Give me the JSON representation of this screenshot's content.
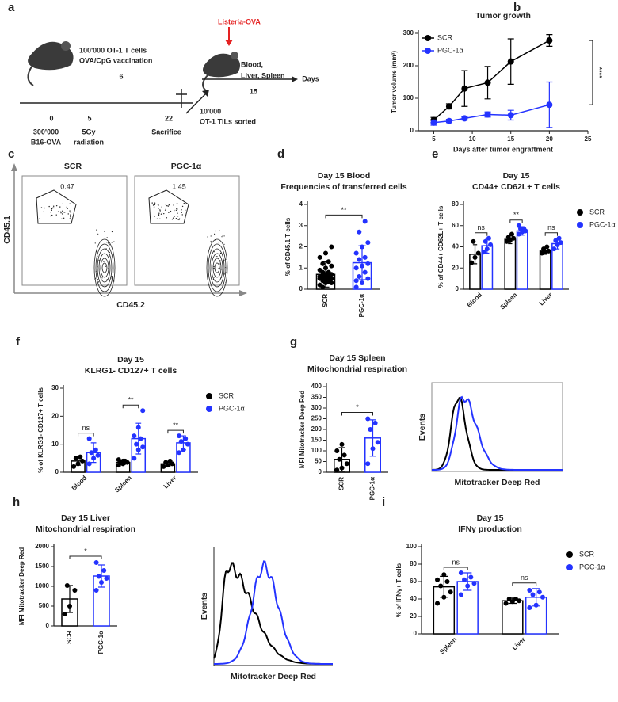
{
  "schematic": {
    "panel": "a",
    "injection": "Listeria-OVA",
    "harvest": [
      "Blood,",
      "Liver, Spleen"
    ],
    "treatment": [
      "100'000 OT-1 T cells",
      "OVA/CpG vaccination"
    ],
    "interval": 6,
    "timeline": [
      {
        "day": 0,
        "event": [
          "300'000",
          "B16-OVA"
        ]
      },
      {
        "day": 5,
        "event": [
          "5Gy",
          "radiation"
        ]
      },
      {
        "day": 22,
        "event": [
          "Sacrifice"
        ]
      }
    ],
    "transfer": [
      "10'000",
      "OT-1 TILs sorted"
    ],
    "followup": 15,
    "unit": "Days"
  },
  "flow": {
    "panel": "c",
    "plots": [
      {
        "name": "SCR",
        "gate_value": 0.47
      },
      {
        "name": "PGC-1α",
        "gate_value": {
          "value": 1.45,
          "label": "1,45"
        }
      }
    ],
    "y_label": "CD45.1",
    "x_label": "CD45.2"
  },
  "chart_data": [
    {
      "type": "line",
      "panel": "b",
      "title": "Tumor growth",
      "x_label": "Days after tumor engraftment",
      "y_label": "Tumor volume (mm³)",
      "x": [
        5,
        7,
        9,
        12,
        15,
        20
      ],
      "series": [
        {
          "name": "SCR",
          "color": "#000000",
          "values": [
            33,
            75,
            130,
            148,
            213,
            278
          ],
          "errors": [
            8,
            8,
            55,
            50,
            70,
            18
          ]
        },
        {
          "name": "PGC-1α",
          "color": "#2433ff",
          "values": [
            25,
            30,
            38,
            50,
            48,
            80
          ],
          "errors": [
            8,
            5,
            5,
            8,
            15,
            70
          ]
        }
      ],
      "xlim": [
        3,
        25
      ],
      "xticks": [
        5,
        10,
        15,
        20,
        25
      ],
      "ylim": [
        0,
        300
      ],
      "yticks": [
        0,
        100,
        200,
        300
      ],
      "annotation": "****",
      "legend": "upper left"
    },
    {
      "type": "bar",
      "panel": "d",
      "title": "Day 15 Blood",
      "subtitle": "Frequencies of transferred cells",
      "y_label": "% of CD45.1 T cells",
      "categories": [
        "SCR",
        "PGC-1α"
      ],
      "colors": [
        "#000000",
        "#2433ff"
      ],
      "values": [
        0.7,
        1.25
      ],
      "errors": [
        0.6,
        0.8
      ],
      "points": [
        [
          0.2,
          0.3,
          0.3,
          0.4,
          0.4,
          0.5,
          0.5,
          0.5,
          0.6,
          0.6,
          0.6,
          0.7,
          0.7,
          0.8,
          0.8,
          0.9,
          1.0,
          1.1,
          1.2,
          1.3,
          1.5,
          1.7,
          2.0,
          0.1,
          0.35
        ],
        [
          0.1,
          0.3,
          0.5,
          0.6,
          0.8,
          1.0,
          1.1,
          1.2,
          1.4,
          1.5,
          1.7,
          2.0,
          2.2,
          2.7,
          3.2,
          0.4
        ]
      ],
      "significance": "**",
      "ylim": [
        0,
        4
      ],
      "yticks": [
        0,
        1,
        2,
        3,
        4
      ]
    },
    {
      "type": "bar",
      "panel": "e",
      "title": "Day 15",
      "subtitle": "CD44+ CD62L+ T cells",
      "y_label": "% of CD44+ CD62L+ T cells",
      "categories": [
        "Blood",
        "Spleen",
        "Liver"
      ],
      "series": [
        {
          "name": "SCR",
          "color": "#000000",
          "values": [
            33,
            47,
            36
          ],
          "errors": [
            9,
            4,
            3
          ],
          "points": [
            [
              25,
              30,
              34,
              45
            ],
            [
              45,
              46,
              48,
              49,
              52
            ],
            [
              34,
              35,
              36,
              38,
              40
            ]
          ]
        },
        {
          "name": "PGC-1α",
          "color": "#2433ff",
          "values": [
            41,
            55,
            43
          ],
          "errors": [
            7,
            4,
            5
          ],
          "points": [
            [
              35,
              38,
              42,
              45,
              48
            ],
            [
              52,
              54,
              55,
              57,
              57,
              60
            ],
            [
              38,
              42,
              44,
              46,
              48
            ]
          ]
        }
      ],
      "significance": [
        "ns",
        "**",
        "ns"
      ],
      "ylim": [
        0,
        80
      ],
      "yticks": [
        0,
        20,
        40,
        60,
        80
      ],
      "legend": "right"
    },
    {
      "type": "bar",
      "panel": "f",
      "title": "Day 15",
      "subtitle": "KLRG1- CD127+ T cells",
      "y_label": "% of KLRG1- CD127+ T cells",
      "categories": [
        "Blood",
        "Spleen",
        "Liver"
      ],
      "series": [
        {
          "name": "SCR",
          "color": "#000000",
          "values": [
            4,
            3.5,
            3
          ],
          "errors": [
            1.5,
            0.8,
            0.8
          ],
          "points": [
            [
              2,
              3,
              4,
              5,
              5.5
            ],
            [
              2.5,
              3,
              3.5,
              3.5,
              4,
              4.5,
              4
            ],
            [
              2,
              2.5,
              3,
              3.5,
              4
            ]
          ]
        },
        {
          "name": "PGC-1α",
          "color": "#2433ff",
          "values": [
            7,
            12,
            10.5
          ],
          "errors": [
            3.5,
            5.5,
            2.5
          ],
          "points": [
            [
              3,
              5,
              6,
              7,
              8,
              12
            ],
            [
              5,
              8,
              9,
              10,
              12,
              13,
              16,
              22
            ],
            [
              7,
              8,
              10,
              11,
              12,
              13
            ]
          ]
        }
      ],
      "significance": [
        "ns",
        "**",
        "**"
      ],
      "ylim": [
        0,
        30
      ],
      "yticks": [
        0,
        10,
        20,
        30
      ],
      "legend": "right"
    },
    {
      "type": "bar",
      "panel": "g",
      "title": "Day 15 Spleen",
      "subtitle": "Mitochondrial respiration",
      "y_label": "MFI Mitotracker Deep Red",
      "categories": [
        "SCR",
        "PGC-1α"
      ],
      "colors": [
        "#000000",
        "#2433ff"
      ],
      "values": [
        60,
        160
      ],
      "errors": [
        55,
        85
      ],
      "points": [
        [
          10,
          20,
          40,
          60,
          80,
          100,
          130
        ],
        [
          40,
          110,
          140,
          200,
          230,
          250
        ]
      ],
      "significance": "*",
      "ylim": [
        0,
        400
      ],
      "yticks": [
        0,
        50,
        100,
        150,
        200,
        250,
        300,
        350,
        400
      ],
      "histogram": {
        "y_label": "Events",
        "x_label": "Mitotracker Deep Red"
      }
    },
    {
      "type": "bar",
      "panel": "h",
      "title": "Day 15 Liver",
      "subtitle": "Mitochondrial respiration",
      "y_label": "MFI Mitotracker Deep Red",
      "categories": [
        "SCR",
        "PGC-1α"
      ],
      "colors": [
        "#000000",
        "#2433ff"
      ],
      "values": [
        680,
        1260
      ],
      "errors": [
        340,
        280
      ],
      "points": [
        [
          300,
          500,
          900,
          1020
        ],
        [
          900,
          1100,
          1200,
          1250,
          1400,
          1600
        ]
      ],
      "significance": "*",
      "ylim": [
        0,
        2000
      ],
      "yticks": [
        0,
        500,
        1000,
        1500,
        2000
      ],
      "histogram": {
        "y_label": "Events",
        "x_label": "Mitotracker Deep Red"
      }
    },
    {
      "type": "bar",
      "panel": "i",
      "title": "Day 15",
      "subtitle": "IFNγ production",
      "y_label": "% of IFNγ+ T cells",
      "categories": [
        "Spleen",
        "Liver"
      ],
      "series": [
        {
          "name": "SCR",
          "color": "#000000",
          "values": [
            54,
            38
          ],
          "errors": [
            12,
            3
          ],
          "points": [
            [
              35,
              42,
              48,
              55,
              60,
              62,
              68
            ],
            [
              35,
              37,
              38,
              40,
              40
            ]
          ]
        },
        {
          "name": "PGC-1α",
          "color": "#2433ff",
          "values": [
            60,
            42
          ],
          "errors": [
            10,
            10
          ],
          "points": [
            [
              45,
              55,
              58,
              62,
              65,
              70
            ],
            [
              30,
              33,
              42,
              45,
              48,
              50
            ]
          ]
        }
      ],
      "significance": [
        "ns",
        "ns"
      ],
      "ylim": [
        0,
        100
      ],
      "yticks": [
        0,
        20,
        40,
        60,
        80,
        100
      ],
      "legend": "right"
    }
  ]
}
